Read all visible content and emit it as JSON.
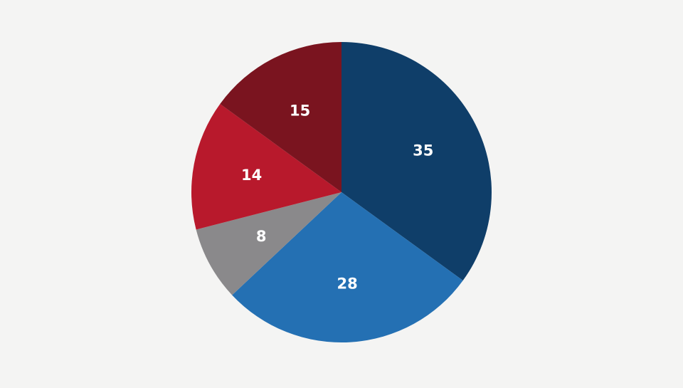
{
  "chart_data": {
    "type": "pie",
    "title": "",
    "start_angle": "12 o'clock",
    "direction": "clockwise",
    "slices": [
      {
        "label": "35",
        "value": 35,
        "color": "#0f3e69"
      },
      {
        "label": "28",
        "value": 28,
        "color": "#2470b3"
      },
      {
        "label": "8",
        "value": 8,
        "color": "#8a898b"
      },
      {
        "label": "14",
        "value": 14,
        "color": "#b8192c"
      },
      {
        "label": "15",
        "value": 15,
        "color": "#7a141f"
      }
    ]
  },
  "colors": {
    "background": "#f4f4f3",
    "label_text": "#ffffff"
  }
}
